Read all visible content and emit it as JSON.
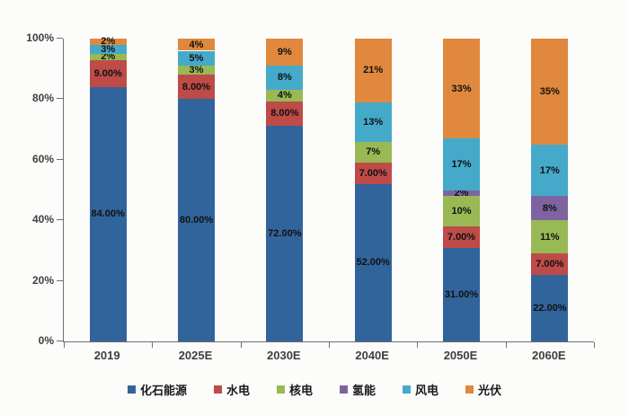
{
  "colors": {
    "axis": "#6f6f6f",
    "label_text": "#111111",
    "tick_text": "#3f3f3f",
    "background": "#fcfcfa"
  },
  "chart_data": {
    "type": "bar",
    "stacked": true,
    "title": "",
    "xlabel": "",
    "ylabel": "",
    "ylim": [
      0,
      100
    ],
    "grid": false,
    "legend_position": "bottom",
    "categories": [
      "2019",
      "2025E",
      "2030E",
      "2040E",
      "2050E",
      "2060E"
    ],
    "y_tick_labels": [
      "0%",
      "20%",
      "40%",
      "60%",
      "80%",
      "100%"
    ],
    "series": [
      {
        "name": "化石能源",
        "color": "#31649B",
        "values": [
          84,
          80,
          72,
          52,
          31,
          22
        ],
        "labels": [
          "84.00%",
          "80.00%",
          "72.00%",
          "52.00%",
          "31.00%",
          "22.00%"
        ]
      },
      {
        "name": "水电",
        "color": "#BE4B48",
        "values": [
          9,
          8,
          8,
          7,
          7,
          7
        ],
        "labels": [
          "9.00%",
          "8.00%",
          "8.00%",
          "7.00%",
          "7.00%",
          "7.00%"
        ]
      },
      {
        "name": "核电",
        "color": "#98B954",
        "values": [
          2,
          3,
          4,
          7,
          10,
          11
        ],
        "labels": [
          "2%",
          "3%",
          "4%",
          "7%",
          "10%",
          "11%"
        ]
      },
      {
        "name": "氢能",
        "color": "#7F63A1",
        "values": [
          0,
          0,
          0,
          0,
          2,
          8
        ],
        "labels": [
          "",
          "",
          "",
          "",
          "2%",
          "8%"
        ]
      },
      {
        "name": "风电",
        "color": "#45A9C9",
        "values": [
          3,
          5,
          8,
          13,
          17,
          17
        ],
        "labels": [
          "3%",
          "5%",
          "8%",
          "13%",
          "17%",
          "17%"
        ]
      },
      {
        "name": "光伏",
        "color": "#E0883D",
        "values": [
          2,
          4,
          9,
          21,
          33,
          35
        ],
        "labels": [
          "2%",
          "4%",
          "9%",
          "21%",
          "33%",
          "35%"
        ]
      }
    ]
  }
}
